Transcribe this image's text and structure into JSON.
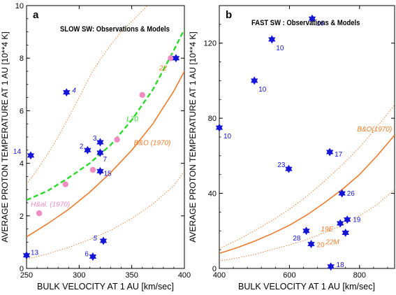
{
  "chart_data": [
    {
      "type": "scatter",
      "panel_label": "a",
      "title": "SLOW SW: Observations & Models",
      "xlabel": "BULK VELOCITY AT 1 AU [km/sec]",
      "ylabel": "AVERAGE PROTON TEMPERATURE AT 1 AU [10**4 K]",
      "xlim": [
        250,
        400
      ],
      "ylim": [
        0,
        10
      ],
      "xticks": [
        250,
        300,
        350,
        400
      ],
      "yticks": [
        0,
        2,
        4,
        6,
        8,
        10
      ],
      "grid": false,
      "colors": {
        "observations": "#1515d6",
        "models_pink": "#f08cc0",
        "bo_curve": "#f07b2a",
        "l70_curve": "#2bd92b"
      },
      "observations": [
        {
          "x": 288,
          "y": 6.7,
          "label": "4"
        },
        {
          "x": 254,
          "y": 4.3,
          "label": "14"
        },
        {
          "x": 308,
          "y": 4.5,
          "label": "2"
        },
        {
          "x": 320,
          "y": 4.8,
          "label": "3"
        },
        {
          "x": 320,
          "y": 4.4,
          "label": "7"
        },
        {
          "x": 320,
          "y": 3.7,
          "label": "15"
        },
        {
          "x": 250,
          "y": 0.5,
          "label": "13"
        },
        {
          "x": 313,
          "y": 0.45,
          "label": "6"
        },
        {
          "x": 323,
          "y": 1.05,
          "label": "5"
        },
        {
          "x": 392,
          "y": 8.0,
          "label": "22"
        }
      ],
      "model_points": [
        {
          "x": 262,
          "y": 2.1
        },
        {
          "x": 287,
          "y": 3.2
        },
        {
          "x": 313,
          "y": 3.75
        },
        {
          "x": 336,
          "y": 4.9
        },
        {
          "x": 360,
          "y": 6.6
        },
        {
          "x": 387,
          "y": 8.0
        }
      ],
      "curves": [
        {
          "name": "B&O (1970)",
          "style": "solid",
          "x": [
            250,
            270,
            290,
            310,
            330,
            350,
            370,
            390,
            400
          ],
          "y": [
            1.2,
            1.7,
            2.25,
            2.9,
            3.65,
            4.5,
            5.5,
            6.75,
            7.5
          ]
        },
        {
          "name": "",
          "style": "dotted",
          "x": [
            250,
            270,
            290,
            310,
            330,
            350,
            370,
            390,
            400
          ],
          "y": [
            0.35,
            0.55,
            0.8,
            1.1,
            1.45,
            1.9,
            2.45,
            3.15,
            3.7
          ]
        },
        {
          "name": "",
          "style": "dotted",
          "x": [
            250,
            260,
            270,
            280,
            290,
            300,
            310,
            320,
            330,
            340,
            350,
            360,
            365
          ],
          "y": [
            3.2,
            3.75,
            4.35,
            5.0,
            5.75,
            6.5,
            7.3,
            7.95,
            8.5,
            9.0,
            9.4,
            9.8,
            10.0
          ]
        },
        {
          "name": "L70",
          "style": "dashed",
          "x": [
            250,
            270,
            290,
            310,
            330,
            350,
            370,
            390,
            400
          ],
          "y": [
            2.6,
            2.95,
            3.45,
            4.0,
            4.7,
            5.65,
            6.8,
            8.3,
            9.1
          ]
        }
      ],
      "annotations": [
        {
          "text": "B&O (1970)",
          "x": 352,
          "y": 4.7,
          "color": "#f07b2a"
        },
        {
          "text": "L70",
          "x": 345,
          "y": 5.6,
          "color": "#2bd92b"
        },
        {
          "text": "H&al. (1970)",
          "x": 254,
          "y": 2.35,
          "color": "#f08cc0"
        }
      ]
    },
    {
      "type": "scatter",
      "panel_label": "b",
      "title": "FAST SW : Observations & Models",
      "xlabel": "BULK VELOCITY AT 1 AU [km/sec]",
      "ylabel": "AVERAGE PROTON TEMPERATURE AT 1 AU [10**4 K]",
      "xlim": [
        400,
        900
      ],
      "ylim": [
        0,
        140
      ],
      "xticks": [
        400,
        600,
        800
      ],
      "yticks": [
        0,
        40,
        80,
        120
      ],
      "grid": false,
      "colors": {
        "observations": "#1515d6",
        "bo_curve": "#f07b2a"
      },
      "observations": [
        {
          "x": 665,
          "y": 133,
          "label": "16"
        },
        {
          "x": 550,
          "y": 122,
          "label": "10"
        },
        {
          "x": 500,
          "y": 100,
          "label": "10"
        },
        {
          "x": 400,
          "y": 75,
          "label": "10"
        },
        {
          "x": 715,
          "y": 62,
          "label": "17"
        },
        {
          "x": 598,
          "y": 53,
          "label": "23"
        },
        {
          "x": 750,
          "y": 40,
          "label": "26"
        },
        {
          "x": 765,
          "y": 26,
          "label": "19"
        },
        {
          "x": 745,
          "y": 24,
          "label": "19E"
        },
        {
          "x": 760,
          "y": 19,
          "label": "22M"
        },
        {
          "x": 648,
          "y": 20,
          "label": "28"
        },
        {
          "x": 662,
          "y": 13,
          "label": "20"
        },
        {
          "x": 718,
          "y": 1,
          "label": "18"
        }
      ],
      "curves": [
        {
          "name": "B&O(1970)",
          "style": "solid",
          "x": [
            400,
            450,
            500,
            550,
            600,
            650,
            700,
            750,
            800,
            850,
            900
          ],
          "y": [
            8,
            11,
            14.5,
            18.5,
            23,
            28.5,
            35,
            42,
            50,
            60,
            71
          ]
        },
        {
          "name": "",
          "style": "dotted",
          "x": [
            400,
            450,
            500,
            550,
            600,
            650,
            700,
            750,
            800,
            850,
            900
          ],
          "y": [
            4,
            5.5,
            7.5,
            10,
            12.5,
            15.5,
            19,
            23,
            28,
            34,
            42
          ]
        },
        {
          "name": "",
          "style": "dotted",
          "x": [
            400,
            450,
            500,
            550,
            600,
            650,
            700,
            750,
            800,
            850,
            900
          ],
          "y": [
            10.5,
            15,
            20,
            25.5,
            31.5,
            38.5,
            46.5,
            55,
            64.5,
            75.5,
            87
          ]
        }
      ],
      "annotations": [
        {
          "text": "B&O(1970)",
          "x": 793,
          "y": 73,
          "color": "#f07b2a"
        }
      ]
    }
  ]
}
